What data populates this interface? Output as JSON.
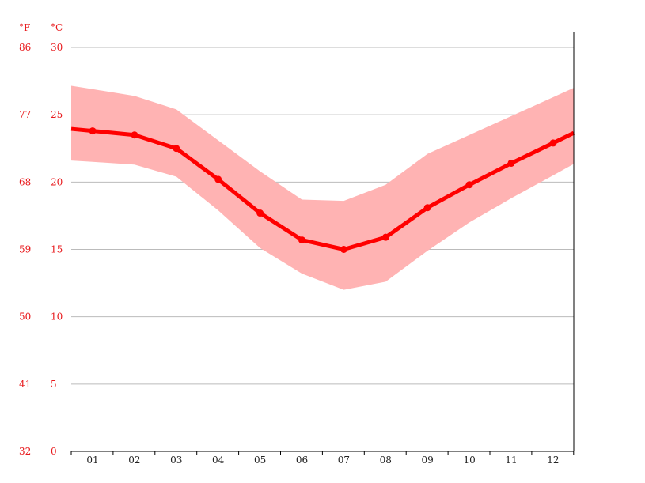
{
  "chart_data": {
    "type": "line",
    "title": "",
    "xlabel": "",
    "ylabel": "",
    "unit_labels": {
      "f": "°F",
      "c": "°C"
    },
    "categories": [
      "01",
      "02",
      "03",
      "04",
      "05",
      "06",
      "07",
      "08",
      "09",
      "10",
      "11",
      "12"
    ],
    "y_ticks_c": [
      "30",
      "25",
      "20",
      "15",
      "10",
      "5",
      "0"
    ],
    "y_ticks_f": [
      "86",
      "77",
      "68",
      "59",
      "50",
      "41",
      "32"
    ],
    "ylim": [
      0,
      30
    ],
    "grid": true,
    "series": [
      {
        "type": "line",
        "values": [
          23.8,
          23.5,
          22.5,
          20.2,
          17.7,
          15.7,
          15.0,
          15.9,
          18.1,
          19.8,
          21.4,
          22.9
        ]
      },
      {
        "type": "band",
        "upper": [
          26.9,
          26.4,
          25.4,
          23.1,
          20.8,
          18.7,
          18.6,
          19.8,
          22.1,
          23.5,
          24.9,
          26.3
        ],
        "lower": [
          21.5,
          21.3,
          20.4,
          17.9,
          15.1,
          13.2,
          12.0,
          12.6,
          14.9,
          17.0,
          18.8,
          20.5
        ]
      }
    ],
    "colors": {
      "line": "#ff0000",
      "band": "#ffb3b3",
      "label": "#e8191c",
      "grid": "#bbbbbb"
    }
  }
}
